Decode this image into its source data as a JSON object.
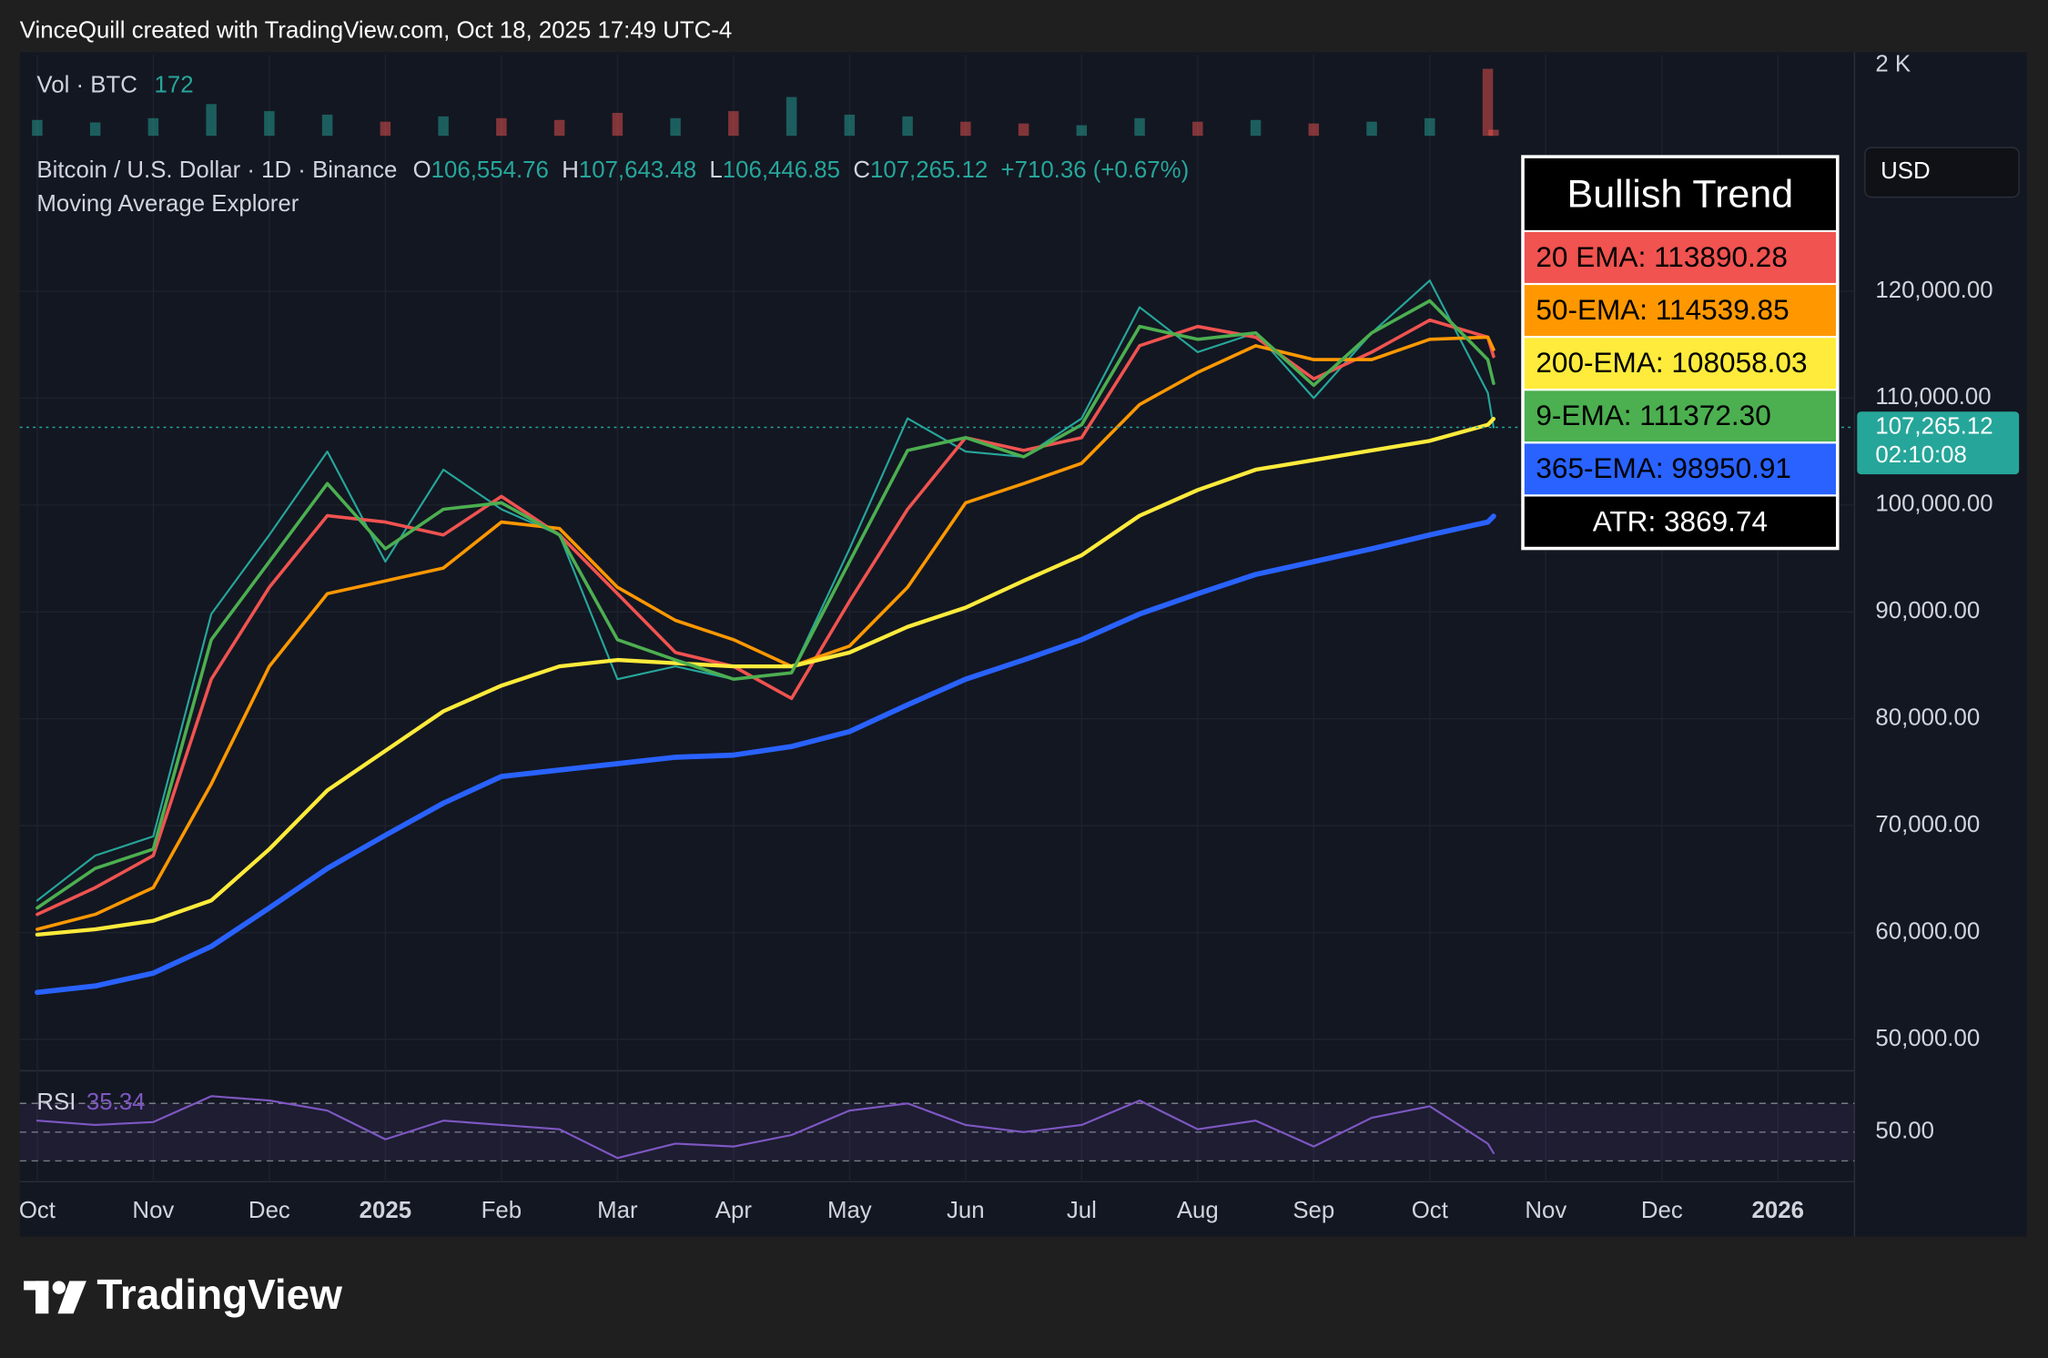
{
  "header": {
    "credit": "VinceQuill created with TradingView.com, Oct 18, 2025 17:49 UTC-4",
    "brand": "TradingView"
  },
  "chart_data": [
    {
      "type": "bar",
      "title": "Vol · BTC",
      "x": [
        0,
        0.5,
        1,
        1.5,
        2,
        2.5,
        3,
        3.5,
        4,
        4.5,
        5,
        5.5,
        6,
        6.5,
        7,
        7.5,
        8,
        8.5,
        9,
        9.5,
        10,
        10.5,
        11,
        11.5,
        12,
        12.5,
        12.55
      ],
      "series": [
        {
          "values": [
            450,
            380,
            500,
            900,
            700,
            600,
            400,
            550,
            500,
            450,
            650,
            500,
            700,
            1100,
            600,
            550,
            400,
            350,
            300,
            500,
            400,
            450,
            350,
            400,
            500,
            1900,
            172
          ]
        }
      ],
      "up_color": "#26a69a",
      "down_color": "#ef5350",
      "xlim": [
        -0.15,
        15.66
      ],
      "ylim": [
        0,
        2296
      ],
      "yticks": [
        {
          "value": 2000,
          "label": "2 K"
        }
      ]
    },
    {
      "type": "line",
      "title": "Bitcoin / U.S. Dollar · 1D · Binance",
      "subtitle": "Moving Average Explorer",
      "ohlc": [
        {
          "label": "O",
          "value": "106,554.76"
        },
        {
          "label": "H",
          "value": "107,643.48"
        },
        {
          "label": "L",
          "value": "106,446.85"
        },
        {
          "label": "C",
          "value": "107,265.12"
        }
      ],
      "change": "+710.36 (+0.67%)",
      "currency": "USD",
      "last_price": {
        "value": 107265.12,
        "label": "107,265.12"
      },
      "countdown": "02:10:08",
      "x": [
        0,
        0.5,
        1,
        1.5,
        2,
        2.5,
        3,
        3.5,
        4,
        4.5,
        5,
        5.5,
        6,
        6.5,
        7,
        7.5,
        8,
        8.5,
        9,
        9.5,
        10,
        10.5,
        11,
        11.5,
        12,
        12.5,
        12.55
      ],
      "series": [
        {
          "color": "#26a69a",
          "width": 1.5,
          "values": [
            63000,
            67200,
            69000,
            89800,
            97200,
            105000,
            94700,
            103300,
            99600,
            97200,
            83700,
            84900,
            83700,
            84300,
            95900,
            108100,
            105000,
            104500,
            108100,
            118500,
            114300,
            116100,
            110000,
            116100,
            121000,
            110500,
            107265.12
          ]
        },
        {
          "color": "#f05350",
          "width": 2.5,
          "values": [
            61700,
            64200,
            67200,
            83700,
            92300,
            99000,
            98400,
            97200,
            100800,
            97200,
            91700,
            86200,
            84900,
            81900,
            91000,
            99600,
            106300,
            105100,
            106300,
            114900,
            116700,
            115700,
            111800,
            114300,
            117300,
            115700,
            113890.28
          ]
        },
        {
          "color": "#ff9800",
          "width": 2.5,
          "values": [
            60300,
            61700,
            64200,
            73900,
            84900,
            91700,
            92900,
            94100,
            98400,
            97800,
            92300,
            89200,
            87400,
            84900,
            86800,
            92300,
            100200,
            102000,
            103900,
            109400,
            112400,
            114900,
            113600,
            113600,
            115500,
            115700,
            114539.85
          ]
        },
        {
          "color": "#ffeb3b",
          "width": 3,
          "values": [
            59800,
            60300,
            61100,
            63000,
            67800,
            73300,
            77000,
            80700,
            83100,
            84900,
            85500,
            85200,
            84900,
            84900,
            86200,
            88600,
            90400,
            92900,
            95300,
            99000,
            101400,
            103300,
            104200,
            105100,
            106000,
            107500,
            108058.03
          ]
        },
        {
          "color": "#4caf50",
          "width": 2.5,
          "values": [
            62300,
            66000,
            67800,
            87400,
            94700,
            102000,
            95900,
            99600,
            100200,
            97200,
            87400,
            85500,
            83700,
            84300,
            94700,
            105100,
            106300,
            104500,
            107500,
            116700,
            115500,
            116100,
            111200,
            116100,
            119100,
            113600,
            111372.3
          ]
        },
        {
          "color": "#2962ff",
          "width": 4,
          "values": [
            54400,
            55000,
            56200,
            58700,
            62300,
            66000,
            69100,
            72100,
            74600,
            75200,
            75800,
            76400,
            76600,
            77400,
            78800,
            81300,
            83700,
            85500,
            87400,
            89800,
            91700,
            93500,
            94700,
            95900,
            97200,
            98400,
            98950.91
          ]
        }
      ],
      "xlim": [
        -0.15,
        15.66
      ],
      "ylim": [
        47070,
        134050
      ],
      "grid": true,
      "yticks": [
        {
          "value": 50000,
          "label": "50,000.00"
        },
        {
          "value": 60000,
          "label": "60,000.00"
        },
        {
          "value": 70000,
          "label": "70,000.00"
        },
        {
          "value": 80000,
          "label": "80,000.00"
        },
        {
          "value": 90000,
          "label": "90,000.00"
        },
        {
          "value": 100000,
          "label": "100,000.00"
        },
        {
          "value": 110000,
          "label": "110,000.00"
        },
        {
          "value": 120000,
          "label": "120,000.00"
        }
      ],
      "table": {
        "title": "Bullish Trend",
        "rows": [
          {
            "text": "20 EMA: 113890.28",
            "color": "#f05350",
            "text_color": "#000000"
          },
          {
            "text": "50-EMA: 114539.85",
            "color": "#ff9800",
            "text_color": "#000000"
          },
          {
            "text": "200-EMA: 108058.03",
            "color": "#ffeb3b",
            "text_color": "#000000"
          },
          {
            "text": "9-EMA: 111372.30",
            "color": "#4caf50",
            "text_color": "#000000"
          },
          {
            "text": "365-EMA: 98950.91",
            "color": "#2962ff",
            "text_color": "#000000"
          },
          {
            "text": "ATR: 3869.74",
            "color": "#000000",
            "text_color": "#ffffff",
            "align": "center"
          }
        ]
      }
    },
    {
      "type": "line",
      "title": "RSI",
      "x": [
        0,
        0.5,
        1,
        1.5,
        2,
        2.5,
        3,
        3.5,
        4,
        4.5,
        5,
        5.5,
        6,
        6.5,
        7,
        7.5,
        8,
        8.5,
        9,
        9.5,
        10,
        10.5,
        11,
        11.5,
        12,
        12.5,
        12.55
      ],
      "series": [
        {
          "color": "#7e57c2",
          "width": 1.5,
          "values": [
            58,
            55,
            57,
            75,
            72,
            65,
            45,
            58,
            55,
            52,
            32,
            42,
            40,
            48,
            65,
            70,
            55,
            50,
            55,
            72,
            52,
            58,
            40,
            60,
            68,
            42,
            35.34
          ]
        }
      ],
      "bands": [
        30,
        70
      ],
      "xlim": [
        -0.15,
        15.66
      ],
      "ylim": [
        15.5,
        90.9
      ],
      "yticks": [
        {
          "value": 50,
          "label": "50.00"
        }
      ],
      "xticks": [
        {
          "value": 0,
          "label": "Oct"
        },
        {
          "value": 1,
          "label": "Nov"
        },
        {
          "value": 2,
          "label": "Dec"
        },
        {
          "value": 3,
          "label": "2025"
        },
        {
          "value": 4,
          "label": "Feb"
        },
        {
          "value": 5,
          "label": "Mar"
        },
        {
          "value": 6,
          "label": "Apr"
        },
        {
          "value": 7,
          "label": "May"
        },
        {
          "value": 8,
          "label": "Jun"
        },
        {
          "value": 9,
          "label": "Jul"
        },
        {
          "value": 10,
          "label": "Aug"
        },
        {
          "value": 11,
          "label": "Sep"
        },
        {
          "value": 12,
          "label": "Oct"
        },
        {
          "value": 13,
          "label": "Nov"
        },
        {
          "value": 14,
          "label": "Dec"
        },
        {
          "value": 15,
          "label": "2026"
        }
      ]
    }
  ]
}
